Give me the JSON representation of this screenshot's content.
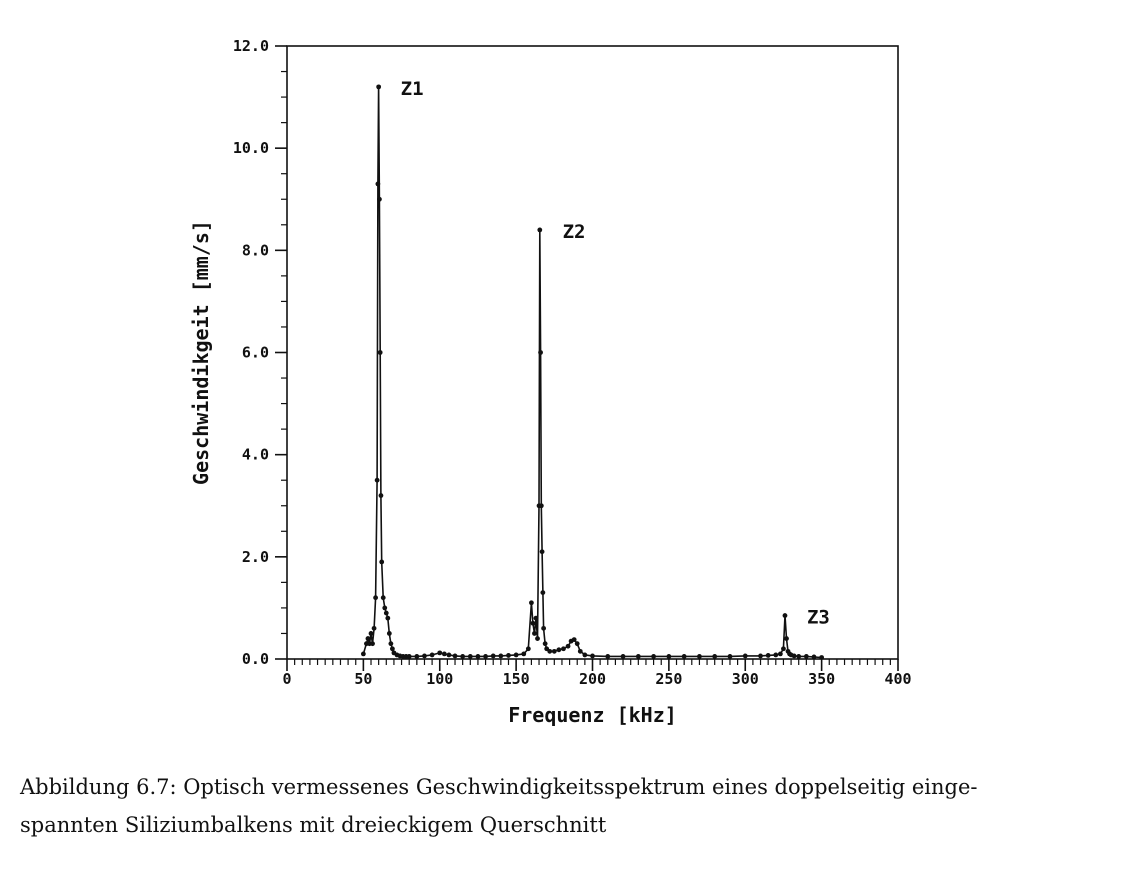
{
  "chart_data": {
    "type": "line",
    "xlabel": "Frequenz [kHz]",
    "ylabel": "Geschwindikgeit [mm/s]",
    "xlim": [
      0,
      400
    ],
    "ylim": [
      0,
      12
    ],
    "x_major_ticks": [
      0,
      50,
      100,
      150,
      200,
      250,
      300,
      350,
      400
    ],
    "x_tick_labels": [
      "0",
      "50",
      "100",
      "150",
      "200",
      "250",
      "300",
      "350",
      "400"
    ],
    "y_major_ticks": [
      0,
      2,
      4,
      6,
      8,
      10,
      12
    ],
    "y_tick_labels": [
      "0.0",
      "2.0",
      "4.0",
      "6.0",
      "8.0",
      "10.0",
      "12.0"
    ],
    "grid": false,
    "series": [
      {
        "x": [
          50,
          52,
          53,
          54,
          55,
          56,
          57,
          58,
          59,
          59.5,
          60,
          60.5,
          61,
          61.5,
          62,
          63,
          64,
          65,
          66,
          67,
          68,
          69,
          70,
          72,
          74,
          76,
          78,
          80,
          85,
          90,
          95,
          100,
          103,
          106,
          110,
          115,
          120,
          125,
          130,
          135,
          140,
          145,
          150,
          155,
          158,
          160,
          161,
          162,
          163,
          164,
          165,
          165.5,
          166,
          166.5,
          167,
          167.5,
          168,
          169,
          170,
          172,
          175,
          178,
          181,
          184,
          186,
          188,
          190,
          192,
          195,
          200,
          210,
          220,
          230,
          240,
          250,
          260,
          270,
          280,
          290,
          300,
          310,
          315,
          320,
          323,
          325,
          326,
          327,
          328,
          329,
          330,
          332,
          335,
          340,
          345,
          350
        ],
        "y": [
          0.1,
          0.3,
          0.4,
          0.3,
          0.5,
          0.3,
          0.6,
          1.2,
          3.5,
          9.3,
          11.2,
          9.0,
          6.0,
          3.2,
          1.9,
          1.2,
          1.0,
          0.9,
          0.8,
          0.5,
          0.3,
          0.2,
          0.12,
          0.08,
          0.06,
          0.05,
          0.05,
          0.05,
          0.05,
          0.06,
          0.08,
          0.12,
          0.1,
          0.08,
          0.06,
          0.05,
          0.05,
          0.05,
          0.05,
          0.06,
          0.06,
          0.07,
          0.08,
          0.1,
          0.2,
          1.1,
          0.7,
          0.5,
          0.8,
          0.4,
          3.0,
          8.4,
          6.0,
          3.0,
          2.1,
          1.3,
          0.6,
          0.3,
          0.2,
          0.15,
          0.15,
          0.18,
          0.2,
          0.25,
          0.35,
          0.38,
          0.3,
          0.15,
          0.08,
          0.06,
          0.05,
          0.05,
          0.05,
          0.05,
          0.05,
          0.05,
          0.05,
          0.05,
          0.05,
          0.06,
          0.06,
          0.07,
          0.08,
          0.1,
          0.2,
          0.85,
          0.4,
          0.15,
          0.1,
          0.08,
          0.06,
          0.05,
          0.05,
          0.04,
          0.03
        ]
      }
    ],
    "annotations": [
      {
        "text": "Z1",
        "x": 60,
        "y": 11.2
      },
      {
        "text": "Z2",
        "x": 166,
        "y": 8.4
      },
      {
        "text": "Z3",
        "x": 326,
        "y": 0.85
      }
    ]
  },
  "caption": {
    "line1": "Abbildung 6.7: Optisch vermessenes Geschwindigkeitsspektrum eines doppelseitig einge-",
    "line2": "spannten Siliziumbalkens mit dreieckigem Querschnitt"
  }
}
